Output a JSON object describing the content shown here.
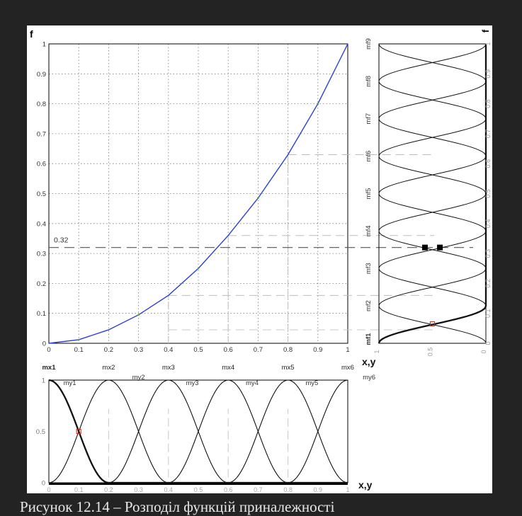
{
  "caption": "Рисунок 12.14 – Розподіл функцій приналежності",
  "chart_data": [
    {
      "type": "line",
      "ylabel": "f",
      "xlim": [
        0,
        1
      ],
      "ylim": [
        0,
        1
      ],
      "grid": true,
      "x_ticks": [
        "0",
        "0.1",
        "0.2",
        "0.3",
        "0.4",
        "0.5",
        "0.6",
        "0.7",
        "0.8",
        "0.9",
        "1"
      ],
      "y_ticks": [
        "0",
        "0.1",
        "0.2",
        "0.3",
        "0.4",
        "0.5",
        "0.6",
        "0.7",
        "0.8",
        "0.9",
        "1"
      ],
      "x_mf_labels": [
        "mx1",
        "mx2",
        "mx3",
        "mx4",
        "mx5",
        "mx6"
      ],
      "annotation": "0.32",
      "annotation_y": 0.32,
      "series": [
        {
          "x": [
            0,
            0.1,
            0.2,
            0.3,
            0.4,
            0.5,
            0.6,
            0.7,
            0.8,
            0.9,
            1
          ],
          "y": [
            0,
            0.012,
            0.045,
            0.095,
            0.16,
            0.25,
            0.36,
            0.485,
            0.63,
            0.8,
            1
          ],
          "color": "#2a3fd6"
        }
      ]
    },
    {
      "type": "line",
      "xlabel": "x,y",
      "xlim": [
        0,
        1
      ],
      "ylim": [
        0,
        1
      ],
      "x_ticks": [
        "0",
        "0.1",
        "0.2",
        "0.3",
        "0.4",
        "0.5",
        "0.6",
        "0.7",
        "0.8",
        "0.9",
        "1"
      ],
      "y_ticks": [
        "0",
        "0.5",
        "1"
      ],
      "mf_labels": [
        "my1",
        "my2",
        "my3",
        "my4",
        "my5",
        "my6"
      ],
      "mf_centers": [
        0,
        0.2,
        0.4,
        0.6,
        0.8,
        1.0
      ],
      "mf_width": 0.2,
      "highlight_point": {
        "x": 0.1,
        "y": 0.5
      }
    },
    {
      "type": "line",
      "xlabel": "x,y",
      "ylabel": "f",
      "orientation": "vertical",
      "ylim": [
        0,
        1
      ],
      "y_ticks": [
        "0",
        "0.1",
        "0.2",
        "0.3",
        "0.4",
        "0.5",
        "0.6",
        "0.7",
        "0.8",
        "0.9",
        "1"
      ],
      "value_ticks": [
        "1",
        "0.5",
        "0"
      ],
      "mf_labels": [
        "mf1",
        "mf2",
        "mf3",
        "mf4",
        "mf5",
        "mf6",
        "mf7",
        "mf8",
        "mf9"
      ],
      "mf_centers": [
        0,
        0.125,
        0.25,
        0.375,
        0.5,
        0.625,
        0.75,
        0.875,
        1.0
      ],
      "mf_width": 0.125,
      "highlight_points": [
        {
          "y": 0.32,
          "mu": 0.43
        },
        {
          "y": 0.32,
          "mu": 0.57
        },
        {
          "y": 0.065,
          "mu": 0.5
        }
      ]
    }
  ]
}
